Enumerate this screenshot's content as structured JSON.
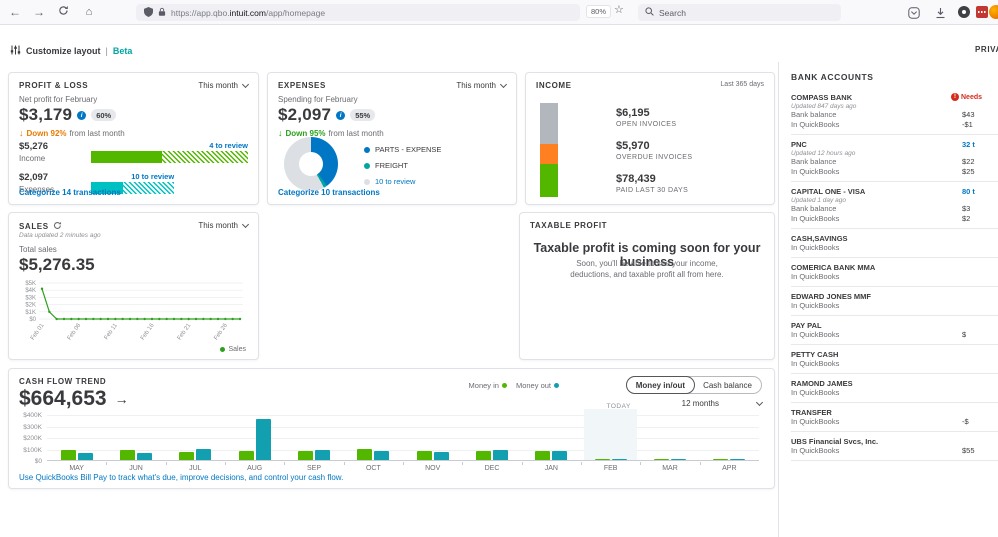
{
  "browser": {
    "url_prefix": "https://app.qbo.",
    "url_domain": "intuit.com",
    "url_path": "/app/homepage",
    "zoom_level": "80%",
    "search_placeholder": "Search"
  },
  "header": {
    "customize_label": "Customize layout",
    "separator": "|",
    "beta_label": "Beta",
    "privacy_label": "PRIVA"
  },
  "profit_loss": {
    "title": "PROFIT & LOSS",
    "period": "This month",
    "subtitle": "Net profit for February",
    "amount": "$3,179",
    "badge": "60%",
    "delta": "Down 92%",
    "delta_suffix": "from last month",
    "income_amount": "$5,276",
    "income_label": "Income",
    "income_review": "4 to review",
    "expenses_amount": "$2,097",
    "expenses_label": "Expenses",
    "expenses_review": "10 to review",
    "categorize_link": "Categorize 14 transactions"
  },
  "expenses": {
    "title": "EXPENSES",
    "period": "This month",
    "subtitle": "Spending for February",
    "amount": "$2,097",
    "badge": "55%",
    "delta": "Down 95%",
    "delta_suffix": "from last month",
    "categorize_link": "Categorize 10 transactions"
  },
  "income": {
    "title": "INCOME",
    "period": "Last 365 days"
  },
  "sales": {
    "title": "SALES",
    "updated": "Data updated 2 minutes ago",
    "period": "This month",
    "total_label": "Total sales",
    "total": "$5,276.35",
    "legend": "Sales"
  },
  "taxable": {
    "title": "TAXABLE PROFIT",
    "heading": "Taxable profit is coming soon for your business",
    "body": "Soon, you'll be able to see your income, deductions, and taxable profit all from here."
  },
  "cashflow": {
    "title": "CASH FLOW TREND",
    "amount": "$664,653",
    "legend_in": "Money in",
    "legend_out": "Money out",
    "toggle_left": "Money in/out",
    "toggle_right": "Cash balance",
    "range": "12 months",
    "today_label": "TODAY",
    "billpay_link": "Use QuickBooks Bill Pay to track what's due, improve decisions, and control your cash flow."
  },
  "bank_panel": {
    "title": "BANK ACCOUNTS",
    "accounts": [
      {
        "name": "COMPASS BANK",
        "updated": "Updated 847 days ago",
        "alert": "Needs",
        "rows": [
          {
            "label": "Bank balance",
            "value": "$43"
          },
          {
            "label": "In QuickBooks",
            "value": "-$1"
          }
        ]
      },
      {
        "name": "PNC",
        "updated": "Updated 12 hours ago",
        "link": "32 t",
        "rows": [
          {
            "label": "Bank balance",
            "value": "$22"
          },
          {
            "label": "In QuickBooks",
            "value": "$25"
          }
        ]
      },
      {
        "name": "CAPITAL ONE - VISA",
        "updated": "Updated 1 day ago",
        "link": "80 t",
        "rows": [
          {
            "label": "Bank balance",
            "value": "$3"
          },
          {
            "label": "In QuickBooks",
            "value": "$2"
          }
        ]
      },
      {
        "name": "CASH,SAVINGS",
        "rows": [
          {
            "label": "In QuickBooks",
            "value": ""
          }
        ]
      },
      {
        "name": "COMERICA BANK MMA",
        "rows": [
          {
            "label": "In QuickBooks",
            "value": ""
          }
        ]
      },
      {
        "name": "EDWARD JONES MMF",
        "rows": [
          {
            "label": "In QuickBooks",
            "value": ""
          }
        ]
      },
      {
        "name": "PAY PAL",
        "rows": [
          {
            "label": "In QuickBooks",
            "value": "$"
          }
        ]
      },
      {
        "name": "PETTY CASH",
        "rows": [
          {
            "label": "In QuickBooks",
            "value": ""
          }
        ]
      },
      {
        "name": "RAMOND JAMES",
        "rows": [
          {
            "label": "In QuickBooks",
            "value": ""
          }
        ]
      },
      {
        "name": "TRANSFER",
        "rows": [
          {
            "label": "In QuickBooks",
            "value": "-$"
          }
        ]
      },
      {
        "name": "UBS Financial Svcs, Inc.",
        "rows": [
          {
            "label": "In QuickBooks",
            "value": "$55"
          }
        ]
      }
    ]
  },
  "chart_data": [
    {
      "id": "profit_loss_bars",
      "type": "bar",
      "title": "PROFIT & LOSS",
      "series": [
        {
          "name": "Income",
          "value": 5276,
          "reviewed_fraction": 0.45,
          "bar_fraction": 1.0,
          "to_review_label": "4 to review",
          "color": "#53b700"
        },
        {
          "name": "Expenses",
          "value": 2097,
          "reviewed_fraction": 0.38,
          "bar_fraction": 0.53,
          "to_review_label": "10 to review",
          "color": "#00c1c1"
        }
      ]
    },
    {
      "id": "expenses_donut",
      "type": "pie",
      "title": "EXPENSES",
      "slices": [
        {
          "label": "PARTS - EXPENSE",
          "pct": 40,
          "color": "#0077c5",
          "link": false
        },
        {
          "label": "FREIGHT",
          "pct": 2,
          "color": "#00a6a4",
          "link": false
        },
        {
          "label": "10 to review",
          "pct": 58,
          "color": "#dcdfe3",
          "link": true
        }
      ]
    },
    {
      "id": "income_stack",
      "type": "bar",
      "title": "INCOME",
      "segments": [
        {
          "label": "OPEN INVOICES",
          "amount": "$6,195",
          "color": "#b2b7bd",
          "heightPct": 44
        },
        {
          "label": "OVERDUE INVOICES",
          "amount": "$5,970",
          "color": "#ff8021",
          "heightPct": 21
        },
        {
          "label": "PAID LAST 30 DAYS",
          "amount": "$78,439",
          "color": "#53b700",
          "heightPct": 35
        }
      ]
    },
    {
      "id": "sales_line",
      "type": "line",
      "title": "SALES",
      "total": "$5,276.35",
      "color": "#2ca01c",
      "ylim": [
        0,
        5000
      ],
      "y_ticks": [
        "$5K",
        "$4K",
        "$3K",
        "$2K",
        "$1K",
        "$0"
      ],
      "x_ticks": [
        "Feb 01",
        "Feb 06",
        "Feb 11",
        "Feb 16",
        "Feb 21",
        "Feb 26"
      ],
      "values": [
        4200,
        1000,
        0,
        0,
        0,
        0,
        0,
        0,
        0,
        0,
        0,
        0,
        0,
        0,
        0,
        0,
        0,
        0,
        0,
        0,
        0,
        0,
        0,
        0,
        0,
        0,
        0,
        0
      ],
      "legend": "Sales"
    },
    {
      "id": "cash_flow",
      "type": "bar",
      "title": "CASH FLOW TREND",
      "amount": "$664,653",
      "unit": "K",
      "ylim": [
        0,
        400
      ],
      "y_ticks": [
        "$400K",
        "$300K",
        "$200K",
        "$100K",
        "$0"
      ],
      "categories": [
        "MAY",
        "JUN",
        "JUL",
        "AUG",
        "SEP",
        "OCT",
        "NOV",
        "DEC",
        "JAN",
        "FEB",
        "MAR",
        "APR"
      ],
      "series": [
        {
          "name": "Money in",
          "color": "#53b700",
          "values": [
            85,
            85,
            70,
            80,
            80,
            95,
            80,
            75,
            80,
            8,
            2,
            1
          ]
        },
        {
          "name": "Money out",
          "color": "#12a0b0",
          "values": [
            60,
            62,
            95,
            360,
            90,
            75,
            70,
            90,
            75,
            12,
            8,
            5
          ]
        }
      ],
      "today_index": 9,
      "today_label": "TODAY"
    }
  ]
}
